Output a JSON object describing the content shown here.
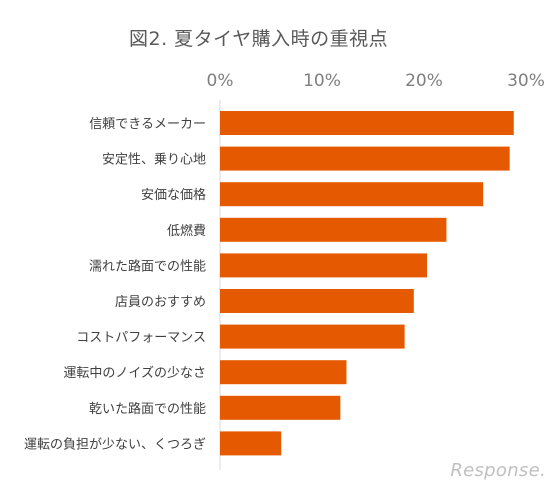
{
  "chart_data": {
    "type": "bar",
    "orientation": "horizontal",
    "title": "図2. 夏タイヤ購入時の重視点",
    "categories": [
      "信頼できるメーカー",
      "安定性、乗り心地",
      "安価な価格",
      "低燃費",
      "濡れた路面での性能",
      "店員のおすすめ",
      "コストパフォーマンス",
      "運転中のノイズの少なさ",
      "乾いた路面での性能",
      "運転の負担が少ない、くつろぎ"
    ],
    "values": [
      28.8,
      28.4,
      25.8,
      22.2,
      20.3,
      19.0,
      18.1,
      12.4,
      11.8,
      6.0
    ],
    "xlim": [
      0,
      30
    ],
    "xticks": [
      "0%",
      "10%",
      "20%",
      "30%"
    ],
    "xtick_values": [
      0,
      10,
      20,
      30
    ],
    "axis_position": "top",
    "grid": false,
    "bar_color": "#E55A00"
  },
  "watermark": "Response."
}
